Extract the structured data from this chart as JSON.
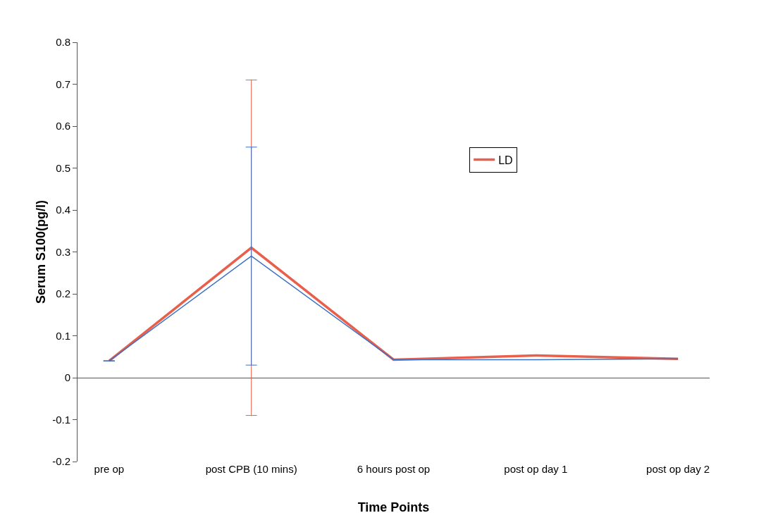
{
  "chart_data": {
    "type": "line",
    "xlabel": "Time Points",
    "ylabel": "Serum S100(pg/l)",
    "categories": [
      "pre op",
      "post CPB (10 mins)",
      "6 hours post op",
      "post op day 1",
      "post op day 2"
    ],
    "series": [
      {
        "name": "LD",
        "color": "#e8604c",
        "values": [
          0.04,
          0.31,
          0.043,
          0.053,
          0.045
        ],
        "errors": [
          0,
          0.4,
          null,
          null,
          null
        ]
      },
      {
        "color": "#3a6fc4",
        "values": [
          0.04,
          0.29,
          0.043,
          0.043,
          0.045
        ],
        "errors": [
          0,
          0.26,
          null,
          null,
          null
        ]
      }
    ],
    "ylim": [
      -0.2,
      0.8
    ],
    "yticks": [
      -0.2,
      -0.1,
      0,
      0.1,
      0.2,
      0.3,
      0.4,
      0.5,
      0.6,
      0.7,
      0.8
    ],
    "grid": false,
    "legend": "right",
    "marker": "none",
    "line_style": "solid"
  }
}
